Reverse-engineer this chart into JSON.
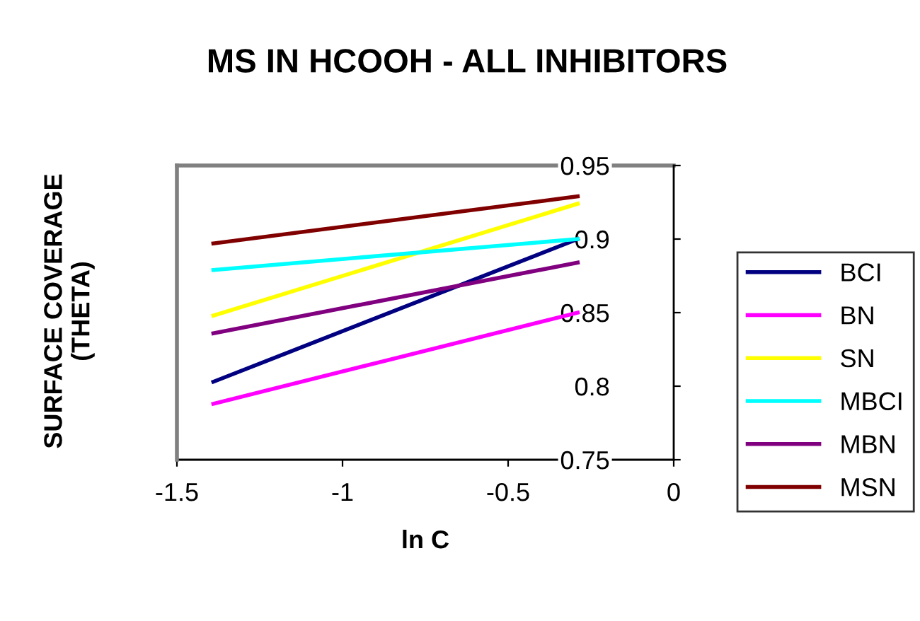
{
  "chart_data": {
    "type": "line",
    "title": "MS IN HCOOH - ALL INHIBITORS",
    "xlabel": "ln C",
    "ylabel": "SURFACE COVERAGE\n(THETA)",
    "x": [
      -1.39,
      -0.29
    ],
    "xlim": [
      -1.5,
      0
    ],
    "xticks": [
      -1.5,
      -1,
      -0.5,
      0
    ],
    "ylim": [
      0.75,
      0.95
    ],
    "yticks": [
      0.75,
      0.8,
      0.85,
      0.9,
      0.95
    ],
    "grid": false,
    "legend": "right",
    "marker": "none",
    "line_style": "solid",
    "series": [
      {
        "name": "BCI",
        "color": "#000080",
        "values": [
          0.803,
          0.9
        ]
      },
      {
        "name": "BN",
        "color": "#ff00ff",
        "values": [
          0.788,
          0.85
        ]
      },
      {
        "name": "SN",
        "color": "#ffff00",
        "values": [
          0.848,
          0.924
        ]
      },
      {
        "name": "MBCI",
        "color": "#00ffff",
        "values": [
          0.879,
          0.9
        ]
      },
      {
        "name": "MBN",
        "color": "#800080",
        "values": [
          0.836,
          0.884
        ]
      },
      {
        "name": "MSN",
        "color": "#800000",
        "values": [
          0.897,
          0.929
        ]
      }
    ]
  }
}
